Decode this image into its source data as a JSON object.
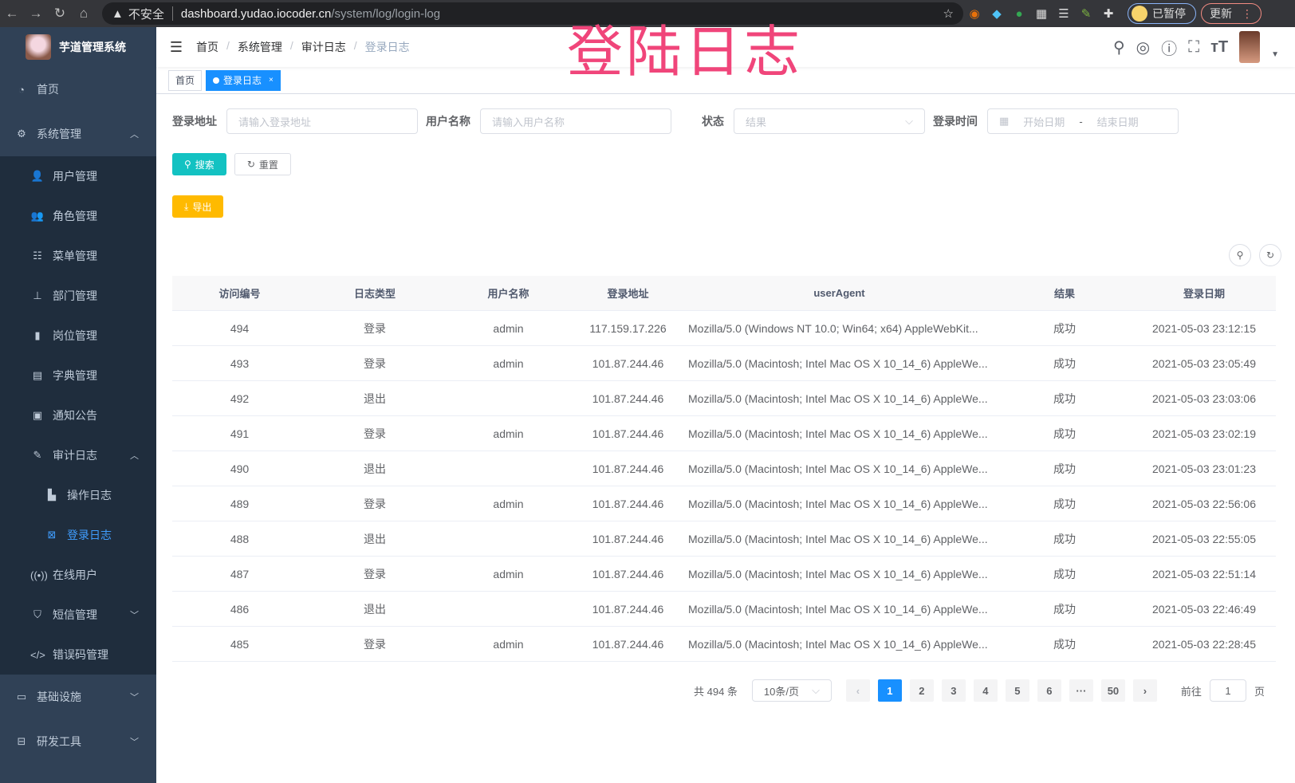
{
  "browser": {
    "insecure_label": "不安全",
    "url_host": "dashboard.yudao.iocoder.cn",
    "url_path": "/system/log/login-log",
    "paused_label": "已暂停",
    "update_label": "更新"
  },
  "sidebar": {
    "logo_title": "芋道管理系统",
    "items": [
      {
        "label": "首页",
        "icon": "dashboard-icon"
      },
      {
        "label": "系统管理",
        "icon": "gear-icon",
        "expanded": true,
        "children": [
          {
            "label": "用户管理",
            "icon": "user-icon"
          },
          {
            "label": "角色管理",
            "icon": "peoples-icon"
          },
          {
            "label": "菜单管理",
            "icon": "tree-table-icon"
          },
          {
            "label": "部门管理",
            "icon": "tree-icon"
          },
          {
            "label": "岗位管理",
            "icon": "post-icon"
          },
          {
            "label": "字典管理",
            "icon": "dict-icon"
          },
          {
            "label": "通知公告",
            "icon": "message-icon"
          },
          {
            "label": "审计日志",
            "icon": "log-icon",
            "expanded": true,
            "children": [
              {
                "label": "操作日志",
                "icon": "form-icon"
              },
              {
                "label": "登录日志",
                "icon": "logininfor-icon",
                "active": true
              }
            ]
          },
          {
            "label": "在线用户",
            "icon": "online-icon"
          },
          {
            "label": "短信管理",
            "icon": "validCode-icon"
          },
          {
            "label": "错误码管理",
            "icon": "code-icon"
          }
        ]
      },
      {
        "label": "基础设施",
        "icon": "monitor-icon"
      },
      {
        "label": "研发工具",
        "icon": "tool-icon"
      }
    ]
  },
  "header": {
    "breadcrumb": [
      "首页",
      "系统管理",
      "审计日志",
      "登录日志"
    ],
    "watermark": "登陆日志"
  },
  "tags": [
    {
      "label": "首页"
    },
    {
      "label": "登录日志",
      "active": true
    }
  ],
  "filters": {
    "address_label": "登录地址",
    "address_placeholder": "请输入登录地址",
    "username_label": "用户名称",
    "username_placeholder": "请输入用户名称",
    "status_label": "状态",
    "status_placeholder": "结果",
    "time_label": "登录时间",
    "start_placeholder": "开始日期",
    "range_sep": "-",
    "end_placeholder": "结束日期"
  },
  "buttons": {
    "search": "搜索",
    "reset": "重置",
    "export": "导出"
  },
  "colors": {
    "primary": "#1890ff",
    "search": "#13c2c2",
    "export": "#ffba00",
    "sidebar": "#304156"
  },
  "table": {
    "columns": [
      "访问编号",
      "日志类型",
      "用户名称",
      "登录地址",
      "userAgent",
      "结果",
      "登录日期"
    ],
    "rows": [
      [
        "494",
        "登录",
        "admin",
        "117.159.17.226",
        "Mozilla/5.0 (Windows NT 10.0; Win64; x64) AppleWebKit...",
        "成功",
        "2021-05-03 23:12:15"
      ],
      [
        "493",
        "登录",
        "admin",
        "101.87.244.46",
        "Mozilla/5.0 (Macintosh; Intel Mac OS X 10_14_6) AppleWe...",
        "成功",
        "2021-05-03 23:05:49"
      ],
      [
        "492",
        "退出",
        "",
        "101.87.244.46",
        "Mozilla/5.0 (Macintosh; Intel Mac OS X 10_14_6) AppleWe...",
        "成功",
        "2021-05-03 23:03:06"
      ],
      [
        "491",
        "登录",
        "admin",
        "101.87.244.46",
        "Mozilla/5.0 (Macintosh; Intel Mac OS X 10_14_6) AppleWe...",
        "成功",
        "2021-05-03 23:02:19"
      ],
      [
        "490",
        "退出",
        "",
        "101.87.244.46",
        "Mozilla/5.0 (Macintosh; Intel Mac OS X 10_14_6) AppleWe...",
        "成功",
        "2021-05-03 23:01:23"
      ],
      [
        "489",
        "登录",
        "admin",
        "101.87.244.46",
        "Mozilla/5.0 (Macintosh; Intel Mac OS X 10_14_6) AppleWe...",
        "成功",
        "2021-05-03 22:56:06"
      ],
      [
        "488",
        "退出",
        "",
        "101.87.244.46",
        "Mozilla/5.0 (Macintosh; Intel Mac OS X 10_14_6) AppleWe...",
        "成功",
        "2021-05-03 22:55:05"
      ],
      [
        "487",
        "登录",
        "admin",
        "101.87.244.46",
        "Mozilla/5.0 (Macintosh; Intel Mac OS X 10_14_6) AppleWe...",
        "成功",
        "2021-05-03 22:51:14"
      ],
      [
        "486",
        "退出",
        "",
        "101.87.244.46",
        "Mozilla/5.0 (Macintosh; Intel Mac OS X 10_14_6) AppleWe...",
        "成功",
        "2021-05-03 22:46:49"
      ],
      [
        "485",
        "登录",
        "admin",
        "101.87.244.46",
        "Mozilla/5.0 (Macintosh; Intel Mac OS X 10_14_6) AppleWe...",
        "成功",
        "2021-05-03 22:28:45"
      ]
    ]
  },
  "pagination": {
    "total_text": "共 494 条",
    "page_size": "10条/页",
    "pages": [
      "1",
      "2",
      "3",
      "4",
      "5",
      "6",
      "···",
      "50"
    ],
    "current": "1",
    "goto_label": "前往",
    "goto_value": "1",
    "page_unit": "页",
    "prev": "‹",
    "next": "›"
  }
}
